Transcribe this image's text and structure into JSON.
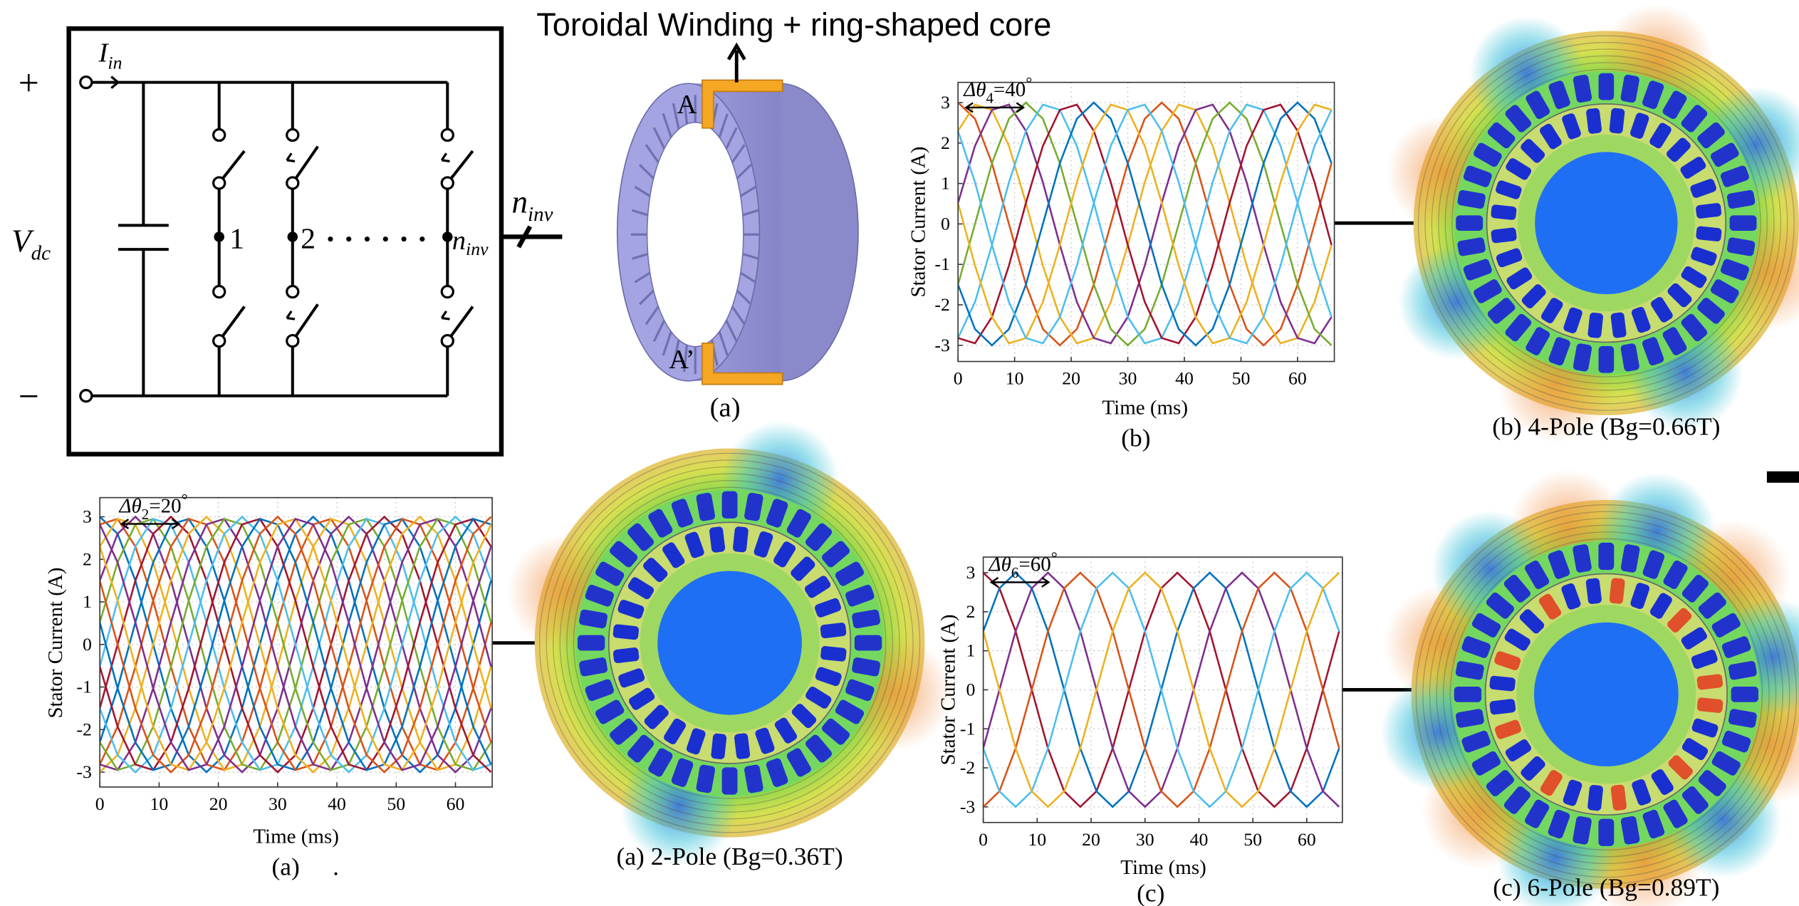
{
  "title": "Toroidal Winding + ring-shaped core",
  "circuit": {
    "plus": "+",
    "minus": "−",
    "input_current": {
      "symbol": "I",
      "subscript": "in"
    },
    "dc_voltage": {
      "symbol": "V",
      "subscript": "dc"
    },
    "leg_labels": [
      "1",
      "2"
    ],
    "last_leg": {
      "symbol": "n",
      "subscript": "inv"
    },
    "output": {
      "symbol": "n",
      "subscript": "inv"
    }
  },
  "core": {
    "top_terminal": "A",
    "bottom_terminal": "A’",
    "caption": "(a)"
  },
  "chart_data": [
    {
      "type": "line",
      "caption": "(b)",
      "xlabel": "Time (ms)",
      "ylabel": "Stator Current (A)",
      "annotation": {
        "symbol": "Δθ",
        "subscript": "4",
        "text": "=40",
        "superscript": "°"
      },
      "xlim": [
        0,
        66.5
      ],
      "ylim": [
        -3.4,
        3.5
      ],
      "xticks": [
        0,
        10,
        20,
        30,
        40,
        50,
        60
      ],
      "yticks": [
        -3,
        -2,
        -1,
        0,
        1,
        2,
        3
      ],
      "grid": true,
      "x": [
        0,
        3,
        6,
        9,
        12,
        15,
        18,
        21,
        24,
        27,
        30,
        33,
        36,
        39,
        42,
        45,
        48,
        51,
        54,
        57,
        60,
        63,
        66
      ],
      "series": [
        {
          "color": "#D95319",
          "values": [
            3,
            2.6,
            1.5,
            0,
            -1.5,
            -2.6,
            -3,
            -2.6,
            -1.5,
            0,
            1.5,
            2.6,
            3,
            2.6,
            1.5,
            0,
            -1.5,
            -2.6,
            -3,
            -2.6,
            -1.5,
            0,
            1.5
          ]
        },
        {
          "color": "#EDB120",
          "values": [
            2.3,
            2.95,
            2.82,
            1.93,
            0.52,
            -1.03,
            -2.3,
            -2.95,
            -2.82,
            -1.93,
            -0.52,
            1.03,
            2.3,
            2.95,
            2.82,
            1.93,
            0.52,
            -1.03,
            -2.3,
            -2.95,
            -2.82,
            -1.93,
            -0.52
          ]
        },
        {
          "color": "#7E2F8E",
          "values": [
            0.52,
            1.93,
            2.82,
            2.95,
            2.3,
            1.03,
            -0.52,
            -1.93,
            -2.82,
            -2.95,
            -2.3,
            -1.03,
            0.52,
            1.93,
            2.82,
            2.95,
            2.3,
            1.03,
            -0.52,
            -1.93,
            -2.82,
            -2.95,
            -2.3
          ]
        },
        {
          "color": "#77AC30",
          "values": [
            -1.5,
            0,
            1.5,
            2.6,
            3,
            2.6,
            1.5,
            0,
            -1.5,
            -2.6,
            -3,
            -2.6,
            -1.5,
            0,
            1.5,
            2.6,
            3,
            2.6,
            1.5,
            0,
            -1.5,
            -2.6,
            -3
          ]
        },
        {
          "color": "#4DBEEE",
          "values": [
            -2.82,
            -1.93,
            -0.52,
            1.03,
            2.3,
            2.95,
            2.82,
            1.93,
            0.52,
            -1.03,
            -2.3,
            -2.95,
            -2.82,
            -1.93,
            -0.52,
            1.03,
            2.3,
            2.95,
            2.82,
            1.93,
            0.52,
            -1.03,
            -2.3
          ]
        },
        {
          "color": "#A2142F",
          "values": [
            -2.82,
            -2.95,
            -2.3,
            -1.03,
            0.52,
            1.93,
            2.82,
            2.95,
            2.3,
            1.03,
            -0.52,
            -1.93,
            -2.82,
            -2.95,
            -2.3,
            -1.03,
            0.52,
            1.93,
            2.82,
            2.95,
            2.3,
            1.03,
            -0.52
          ]
        },
        {
          "color": "#0072BD",
          "values": [
            -1.5,
            -2.6,
            -3,
            -2.6,
            -1.5,
            0,
            1.5,
            2.6,
            3,
            2.6,
            1.5,
            0,
            -1.5,
            -2.6,
            -3,
            -2.6,
            -1.5,
            0,
            1.5,
            2.6,
            3,
            2.6,
            1.5
          ]
        },
        {
          "color": "#EDB120",
          "values": [
            0.52,
            -1.03,
            -2.3,
            -2.95,
            -2.82,
            -1.93,
            -0.52,
            1.03,
            2.3,
            2.95,
            2.82,
            1.93,
            0.52,
            -1.03,
            -2.3,
            -2.95,
            -2.82,
            -1.93,
            -0.52,
            1.03,
            2.3,
            2.95,
            2.82
          ]
        },
        {
          "color": "#4DBEEE",
          "values": [
            2.3,
            1.03,
            -0.52,
            -1.93,
            -2.82,
            -2.95,
            -2.3,
            -1.03,
            0.52,
            1.93,
            2.82,
            2.95,
            2.3,
            1.03,
            -0.52,
            -1.93,
            -2.82,
            -2.95,
            -2.3,
            -1.03,
            0.52,
            1.93,
            2.82
          ]
        }
      ]
    },
    {
      "type": "line",
      "caption": "(a)",
      "note": ".",
      "xlabel": "Time (ms)",
      "ylabel": "Stator Current (A)",
      "annotation": {
        "symbol": "Δθ",
        "subscript": "2",
        "text": "=20",
        "superscript": "°"
      },
      "xlim": [
        0,
        66.2
      ],
      "ylim": [
        -3.35,
        3.45
      ],
      "xticks": [
        0,
        10,
        20,
        30,
        40,
        50,
        60
      ],
      "yticks": [
        -3,
        -2,
        -1,
        0,
        1,
        2,
        3
      ],
      "grid": true,
      "x": [
        0,
        3,
        6,
        9,
        12,
        15,
        18,
        21,
        24,
        27,
        30,
        33,
        36,
        39,
        42,
        45,
        48,
        51,
        54,
        57,
        60,
        63,
        66
      ],
      "series": [
        {
          "color": "#0072BD",
          "values": [
            3,
            2.6,
            1.5,
            0,
            -1.5,
            -2.6,
            -3,
            -2.6,
            -1.5,
            0,
            1.5,
            2.6,
            3,
            2.6,
            1.5,
            0,
            -1.5,
            -2.6,
            -3,
            -2.6,
            -1.5,
            0,
            1.5
          ]
        },
        {
          "color": "#D95319",
          "values": [
            2.82,
            2.95,
            2.3,
            1.03,
            -0.52,
            -1.93,
            -2.82,
            -2.95,
            -2.3,
            -1.03,
            0.52,
            1.93,
            2.82,
            2.95,
            2.3,
            1.03,
            -0.52,
            -1.93,
            -2.82,
            -2.95,
            -2.3,
            -1.03,
            0.52
          ]
        },
        {
          "color": "#EDB120",
          "values": [
            2.3,
            2.95,
            2.82,
            1.93,
            0.52,
            -1.03,
            -2.3,
            -2.95,
            -2.82,
            -1.93,
            -0.52,
            1.03,
            2.3,
            2.95,
            2.82,
            1.93,
            0.52,
            -1.03,
            -2.3,
            -2.95,
            -2.82,
            -1.93,
            -0.52
          ]
        },
        {
          "color": "#7E2F8E",
          "values": [
            1.5,
            2.6,
            3,
            2.6,
            1.5,
            0,
            -1.5,
            -2.6,
            -3,
            -2.6,
            -1.5,
            0,
            1.5,
            2.6,
            3,
            2.6,
            1.5,
            0,
            -1.5,
            -2.6,
            -3,
            -2.6,
            -1.5
          ]
        },
        {
          "color": "#77AC30",
          "values": [
            0.52,
            1.93,
            2.82,
            2.95,
            2.3,
            1.03,
            -0.52,
            -1.93,
            -2.82,
            -2.95,
            -2.3,
            -1.03,
            0.52,
            1.93,
            2.82,
            2.95,
            2.3,
            1.03,
            -0.52,
            -1.93,
            -2.82,
            -2.95,
            -2.3
          ]
        },
        {
          "color": "#4DBEEE",
          "values": [
            -0.52,
            1.03,
            2.3,
            2.95,
            2.82,
            1.93,
            0.52,
            -1.03,
            -2.3,
            -2.95,
            -2.82,
            -1.93,
            -0.52,
            1.03,
            2.3,
            2.95,
            2.82,
            1.93,
            0.52,
            -1.03,
            -2.3,
            -2.95,
            -2.82
          ]
        },
        {
          "color": "#A2142F",
          "values": [
            -1.5,
            0,
            1.5,
            2.6,
            3,
            2.6,
            1.5,
            0,
            -1.5,
            -2.6,
            -3,
            -2.6,
            -1.5,
            0,
            1.5,
            2.6,
            3,
            2.6,
            1.5,
            0,
            -1.5,
            -2.6,
            -3
          ]
        },
        {
          "color": "#0072BD",
          "values": [
            -2.3,
            -1.03,
            0.52,
            1.93,
            2.82,
            2.95,
            2.3,
            1.03,
            -0.52,
            -1.93,
            -2.82,
            -2.95,
            -2.3,
            -1.03,
            0.52,
            1.93,
            2.82,
            2.95,
            2.3,
            1.03,
            -0.52,
            -1.93,
            -2.82
          ]
        },
        {
          "color": "#D95319",
          "values": [
            -2.82,
            -1.93,
            -0.52,
            1.03,
            2.3,
            2.95,
            2.82,
            1.93,
            0.52,
            -1.03,
            -2.3,
            -2.95,
            -2.82,
            -1.93,
            -0.52,
            1.03,
            2.3,
            2.95,
            2.82,
            1.93,
            0.52,
            -1.03,
            -2.3
          ]
        },
        {
          "color": "#EDB120",
          "values": [
            -3,
            -2.6,
            -1.5,
            0,
            1.5,
            2.6,
            3,
            2.6,
            1.5,
            0,
            -1.5,
            -2.6,
            -3,
            -2.6,
            -1.5,
            0,
            1.5,
            2.6,
            3,
            2.6,
            1.5,
            0,
            -1.5
          ]
        },
        {
          "color": "#7E2F8E",
          "values": [
            -2.82,
            -2.95,
            -2.3,
            -1.03,
            0.52,
            1.93,
            2.82,
            2.95,
            2.3,
            1.03,
            -0.52,
            -1.93,
            -2.82,
            -2.95,
            -2.3,
            -1.03,
            0.52,
            1.93,
            2.82,
            2.95,
            2.3,
            1.03,
            -0.52
          ]
        },
        {
          "color": "#77AC30",
          "values": [
            -2.3,
            -2.95,
            -2.82,
            -1.93,
            -0.52,
            1.03,
            2.3,
            2.95,
            2.82,
            1.93,
            0.52,
            -1.03,
            -2.3,
            -2.95,
            -2.82,
            -1.93,
            -0.52,
            1.03,
            2.3,
            2.95,
            2.82,
            1.93,
            0.52
          ]
        },
        {
          "color": "#4DBEEE",
          "values": [
            -1.5,
            -2.6,
            -3,
            -2.6,
            -1.5,
            0,
            1.5,
            2.6,
            3,
            2.6,
            1.5,
            0,
            -1.5,
            -2.6,
            -3,
            -2.6,
            -1.5,
            0,
            1.5,
            2.6,
            3,
            2.6,
            1.5
          ]
        },
        {
          "color": "#A2142F",
          "values": [
            -0.52,
            -1.93,
            -2.82,
            -2.95,
            -2.3,
            -1.03,
            0.52,
            1.93,
            2.82,
            2.95,
            2.3,
            1.03,
            -0.52,
            -1.93,
            -2.82,
            -2.95,
            -2.3,
            -1.03,
            0.52,
            1.93,
            2.82,
            2.95,
            2.3
          ]
        },
        {
          "color": "#0072BD",
          "values": [
            0.52,
            -1.03,
            -2.3,
            -2.95,
            -2.82,
            -1.93,
            -0.52,
            1.03,
            2.3,
            2.95,
            2.82,
            1.93,
            0.52,
            -1.03,
            -2.3,
            -2.95,
            -2.82,
            -1.93,
            -0.52,
            1.03,
            2.3,
            2.95,
            2.82
          ]
        },
        {
          "color": "#D95319",
          "values": [
            1.5,
            0,
            -1.5,
            -2.6,
            -3,
            -2.6,
            -1.5,
            0,
            1.5,
            2.6,
            3,
            2.6,
            1.5,
            0,
            -1.5,
            -2.6,
            -3,
            -2.6,
            -1.5,
            0,
            1.5,
            2.6,
            3
          ]
        },
        {
          "color": "#EDB120",
          "values": [
            2.3,
            1.03,
            -0.52,
            -1.93,
            -2.82,
            -2.95,
            -2.3,
            -1.03,
            0.52,
            1.93,
            2.82,
            2.95,
            2.3,
            1.03,
            -0.52,
            -1.93,
            -2.82,
            -2.95,
            -2.3,
            -1.03,
            0.52,
            1.93,
            2.82
          ]
        },
        {
          "color": "#7E2F8E",
          "values": [
            2.82,
            1.93,
            0.52,
            -1.03,
            -2.3,
            -2.95,
            -2.82,
            -1.93,
            -0.52,
            1.03,
            2.3,
            2.95,
            2.82,
            1.93,
            0.52,
            -1.03,
            -2.3,
            -2.95,
            -2.82,
            -1.93,
            -0.52,
            1.03,
            2.3
          ]
        }
      ]
    },
    {
      "type": "line",
      "caption": "(c)",
      "xlabel": "Time (ms)",
      "ylabel": "Stator Current (A)",
      "annotation": {
        "symbol": "Δθ",
        "subscript": "6",
        "text": "=60",
        "superscript": "°"
      },
      "xlim": [
        0,
        66.6
      ],
      "ylim": [
        -3.4,
        3.4
      ],
      "xticks": [
        0,
        10,
        20,
        30,
        40,
        50,
        60
      ],
      "yticks": [
        -3,
        -2,
        -1,
        0,
        1,
        2,
        3
      ],
      "grid": true,
      "x": [
        0,
        3,
        6,
        9,
        12,
        15,
        18,
        21,
        24,
        27,
        30,
        33,
        36,
        39,
        42,
        45,
        48,
        51,
        54,
        57,
        60,
        63,
        66
      ],
      "series": [
        {
          "color": "#A2142F",
          "values": [
            3,
            2.6,
            1.5,
            0,
            -1.5,
            -2.6,
            -3,
            -2.6,
            -1.5,
            0,
            1.5,
            2.6,
            3,
            2.6,
            1.5,
            0,
            -1.5,
            -2.6,
            -3,
            -2.6,
            -1.5,
            0,
            1.5
          ]
        },
        {
          "color": "#0072BD",
          "values": [
            1.5,
            2.6,
            3,
            2.6,
            1.5,
            0,
            -1.5,
            -2.6,
            -3,
            -2.6,
            -1.5,
            0,
            1.5,
            2.6,
            3,
            2.6,
            1.5,
            0,
            -1.5,
            -2.6,
            -3,
            -2.6,
            -1.5
          ]
        },
        {
          "color": "#7E2F8E",
          "values": [
            -1.5,
            0,
            1.5,
            2.6,
            3,
            2.6,
            1.5,
            0,
            -1.5,
            -2.6,
            -3,
            -2.6,
            -1.5,
            0,
            1.5,
            2.6,
            3,
            2.6,
            1.5,
            0,
            -1.5,
            -2.6,
            -3
          ]
        },
        {
          "color": "#D95319",
          "values": [
            -3,
            -2.6,
            -1.5,
            0,
            1.5,
            2.6,
            3,
            2.6,
            1.5,
            0,
            -1.5,
            -2.6,
            -3,
            -2.6,
            -1.5,
            0,
            1.5,
            2.6,
            3,
            2.6,
            1.5,
            0,
            -1.5
          ]
        },
        {
          "color": "#4DBEEE",
          "values": [
            -1.5,
            -2.6,
            -3,
            -2.6,
            -1.5,
            0,
            1.5,
            2.6,
            3,
            2.6,
            1.5,
            0,
            -1.5,
            -2.6,
            -3,
            -2.6,
            -1.5,
            0,
            1.5,
            2.6,
            3,
            2.6,
            1.5
          ]
        },
        {
          "color": "#EDB120",
          "values": [
            1.5,
            0,
            -1.5,
            -2.6,
            -3,
            -2.6,
            -1.5,
            0,
            1.5,
            2.6,
            3,
            2.6,
            1.5,
            0,
            -1.5,
            -2.6,
            -3,
            -2.6,
            -1.5,
            0,
            1.5,
            2.6,
            3
          ]
        }
      ]
    }
  ],
  "flux_maps": [
    {
      "caption": "(b) 4-Pole (Bg=0.66T)"
    },
    {
      "caption": "(a) 2-Pole (Bg=0.36T)"
    },
    {
      "caption": "(c) 6-Pole (Bg=0.89T)"
    }
  ]
}
